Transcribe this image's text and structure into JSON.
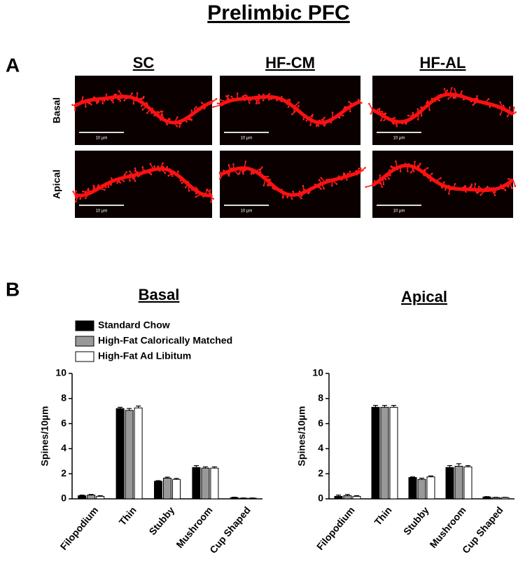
{
  "figure": {
    "title": "Prelimbic PFC",
    "panel_a": "A",
    "panel_b": "B",
    "columns": [
      "SC",
      "HF-CM",
      "HF-AL"
    ],
    "rows": [
      "Basal",
      "Apical"
    ],
    "scale_bars": [
      "10 µm",
      "10 µm",
      "10 µm",
      "10 µm",
      "10 µm",
      "10 µm"
    ]
  },
  "chart_data": [
    {
      "type": "bar",
      "title": "Basal",
      "y_label": "Spines/10µm",
      "categories": [
        "Filopodium",
        "Thin",
        "Stubby",
        "Mushroom",
        "Cup Shaped"
      ],
      "series": [
        {
          "name": "Standard Chow",
          "color": "#000000",
          "values": [
            0.25,
            7.2,
            1.4,
            2.5,
            0.1
          ],
          "errors": [
            0.05,
            0.1,
            0.05,
            0.15,
            0.03
          ]
        },
        {
          "name": "High-Fat Calorically Matched",
          "color": "#999999",
          "values": [
            0.3,
            7.05,
            1.65,
            2.45,
            0.05
          ],
          "errors": [
            0.05,
            0.15,
            0.08,
            0.1,
            0.02
          ]
        },
        {
          "name": "High-Fat Ad Libitum",
          "color": "#ffffff",
          "values": [
            0.2,
            7.25,
            1.55,
            2.45,
            0.05
          ],
          "errors": [
            0.05,
            0.15,
            0.08,
            0.1,
            0.02
          ]
        }
      ],
      "ylim": [
        0,
        10
      ],
      "yticks": [
        0,
        2,
        4,
        6,
        8,
        10
      ],
      "legend": "upper-left"
    },
    {
      "type": "bar",
      "title": "Apical",
      "y_label": "Spines/10µm",
      "categories": [
        "Filopodium",
        "Thin",
        "Stubby",
        "Mushroom",
        "Cup Shaped"
      ],
      "series": [
        {
          "color": "#000000",
          "values": [
            0.2,
            7.3,
            1.7,
            2.5,
            0.15
          ],
          "errors": [
            0.1,
            0.15,
            0.05,
            0.15,
            0.03
          ]
        },
        {
          "color": "#999999",
          "values": [
            0.25,
            7.3,
            1.55,
            2.6,
            0.1
          ],
          "errors": [
            0.1,
            0.15,
            0.1,
            0.2,
            0.02
          ]
        },
        {
          "color": "#ffffff",
          "values": [
            0.2,
            7.3,
            1.75,
            2.55,
            0.1
          ],
          "errors": [
            0.05,
            0.15,
            0.08,
            0.1,
            0.02
          ]
        }
      ],
      "ylim": [
        0,
        10
      ],
      "yticks": [
        0,
        2,
        4,
        6,
        8,
        10
      ]
    }
  ]
}
